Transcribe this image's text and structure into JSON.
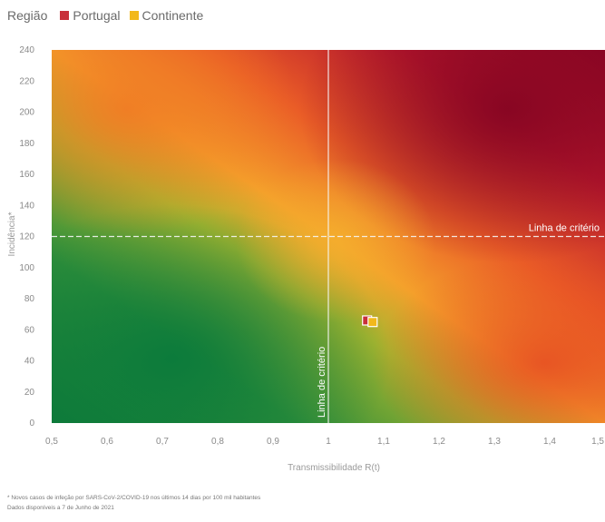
{
  "legend": {
    "title": "Região",
    "items": [
      {
        "label": "Portugal",
        "color": "#c8303a"
      },
      {
        "label": "Continente",
        "color": "#f2b81b"
      }
    ]
  },
  "chart_data": {
    "type": "scatter",
    "xlabel": "Transmissibilidade R(t)",
    "ylabel": "Incidência*",
    "xlim": [
      0.5,
      1.5
    ],
    "ylim": [
      0,
      240
    ],
    "x_ticks": [
      0.5,
      0.6,
      0.7,
      0.8,
      0.9,
      1.0,
      1.1,
      1.2,
      1.3,
      1.4,
      1.5
    ],
    "x_tick_labels": [
      "0,5",
      "0,6",
      "0,7",
      "0,8",
      "0,9",
      "1",
      "1,1",
      "1,2",
      "1,3",
      "1,4",
      "1,5"
    ],
    "y_ticks": [
      0,
      20,
      40,
      60,
      80,
      100,
      120,
      140,
      160,
      180,
      200,
      220,
      240
    ],
    "y_tick_labels": [
      "0",
      "20",
      "40",
      "60",
      "80",
      "100",
      "120",
      "140",
      "160",
      "180",
      "200",
      "220",
      "240"
    ],
    "series": [
      {
        "name": "Portugal",
        "color": "#c8303a",
        "points": [
          {
            "x": 1.07,
            "y": 66
          }
        ]
      },
      {
        "name": "Continente",
        "color": "#f2b81b",
        "points": [
          {
            "x": 1.08,
            "y": 65
          }
        ]
      }
    ],
    "criterion_lines": {
      "x": 1.0,
      "y": 120,
      "x_label": "Linha de critério",
      "y_label": "Linha de critério"
    },
    "background": "heatmap gradient green (low) to dark red (high)",
    "grid": false
  },
  "footnote": [
    "* Novos casos de infeção por SARS-CoV-2/COVID-19 nos últimos 14 dias por 100 mil habitantes",
    "Dados disponíveis a 7 de Junho de 2021"
  ]
}
